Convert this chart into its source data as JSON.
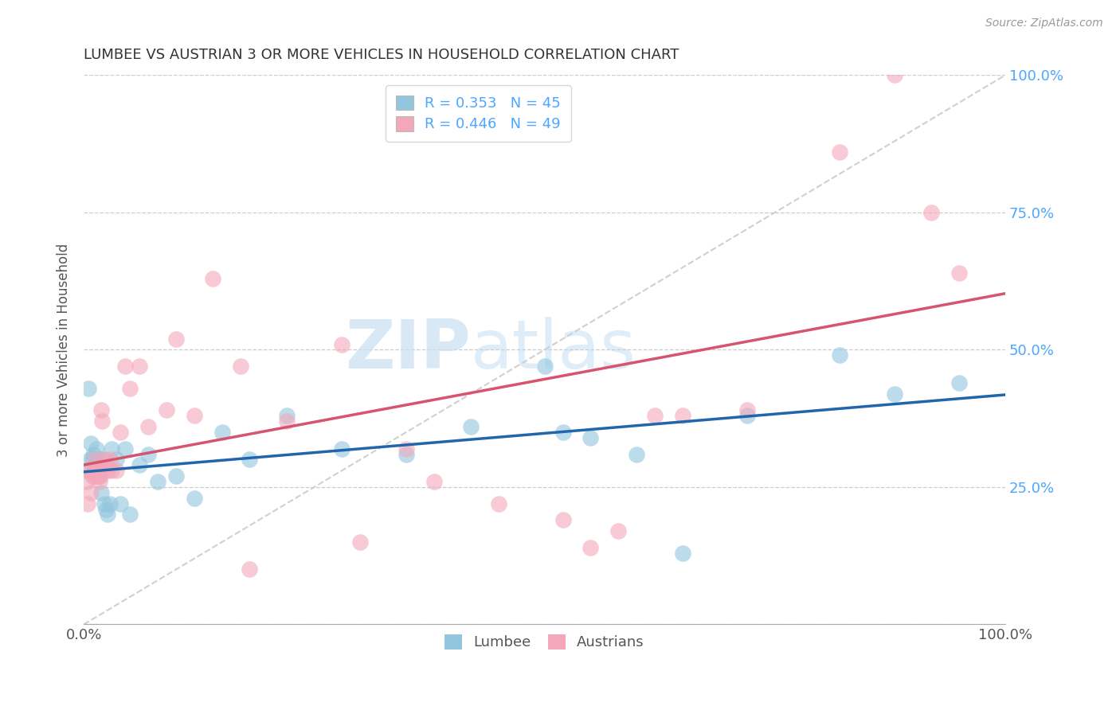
{
  "title": "LUMBEE VS AUSTRIAN 3 OR MORE VEHICLES IN HOUSEHOLD CORRELATION CHART",
  "source": "Source: ZipAtlas.com",
  "ylabel": "3 or more Vehicles in Household",
  "watermark_zip": "ZIP",
  "watermark_atlas": "atlas",
  "legend_lumbee": "R = 0.353   N = 45",
  "legend_austrians": "R = 0.446   N = 49",
  "lumbee_color": "#92c5de",
  "austrians_color": "#f4a7b9",
  "lumbee_line_color": "#2166ac",
  "austrians_line_color": "#d6546e",
  "diagonal_color": "#d0d0d0",
  "xlim": [
    0.0,
    1.0
  ],
  "ylim": [
    0.0,
    1.0
  ],
  "lumbee_x": [
    0.003,
    0.005,
    0.007,
    0.008,
    0.009,
    0.01,
    0.011,
    0.012,
    0.013,
    0.014,
    0.015,
    0.016,
    0.017,
    0.018,
    0.019,
    0.02,
    0.022,
    0.024,
    0.026,
    0.028,
    0.03,
    0.035,
    0.04,
    0.045,
    0.05,
    0.06,
    0.07,
    0.08,
    0.1,
    0.12,
    0.15,
    0.18,
    0.22,
    0.28,
    0.35,
    0.42,
    0.5,
    0.52,
    0.55,
    0.6,
    0.65,
    0.72,
    0.82,
    0.88,
    0.95
  ],
  "lumbee_y": [
    0.28,
    0.43,
    0.3,
    0.33,
    0.3,
    0.31,
    0.28,
    0.29,
    0.28,
    0.32,
    0.3,
    0.27,
    0.29,
    0.28,
    0.24,
    0.3,
    0.22,
    0.21,
    0.2,
    0.22,
    0.32,
    0.3,
    0.22,
    0.32,
    0.2,
    0.29,
    0.31,
    0.26,
    0.27,
    0.23,
    0.35,
    0.3,
    0.38,
    0.32,
    0.31,
    0.36,
    0.47,
    0.35,
    0.34,
    0.31,
    0.13,
    0.38,
    0.49,
    0.42,
    0.44
  ],
  "austrians_x": [
    0.002,
    0.004,
    0.006,
    0.008,
    0.009,
    0.01,
    0.011,
    0.012,
    0.013,
    0.014,
    0.015,
    0.016,
    0.017,
    0.018,
    0.019,
    0.02,
    0.022,
    0.024,
    0.026,
    0.028,
    0.03,
    0.035,
    0.04,
    0.045,
    0.05,
    0.06,
    0.07,
    0.09,
    0.1,
    0.12,
    0.14,
    0.17,
    0.22,
    0.28,
    0.35,
    0.38,
    0.45,
    0.52,
    0.55,
    0.58,
    0.62,
    0.65,
    0.72,
    0.82,
    0.88,
    0.92,
    0.95,
    0.3,
    0.18
  ],
  "austrians_y": [
    0.26,
    0.22,
    0.28,
    0.24,
    0.27,
    0.28,
    0.27,
    0.3,
    0.27,
    0.28,
    0.27,
    0.28,
    0.26,
    0.27,
    0.39,
    0.37,
    0.3,
    0.29,
    0.28,
    0.3,
    0.28,
    0.28,
    0.35,
    0.47,
    0.43,
    0.47,
    0.36,
    0.39,
    0.52,
    0.38,
    0.63,
    0.47,
    0.37,
    0.51,
    0.32,
    0.26,
    0.22,
    0.19,
    0.14,
    0.17,
    0.38,
    0.38,
    0.39,
    0.86,
    1.0,
    0.75,
    0.64,
    0.15,
    0.1
  ]
}
